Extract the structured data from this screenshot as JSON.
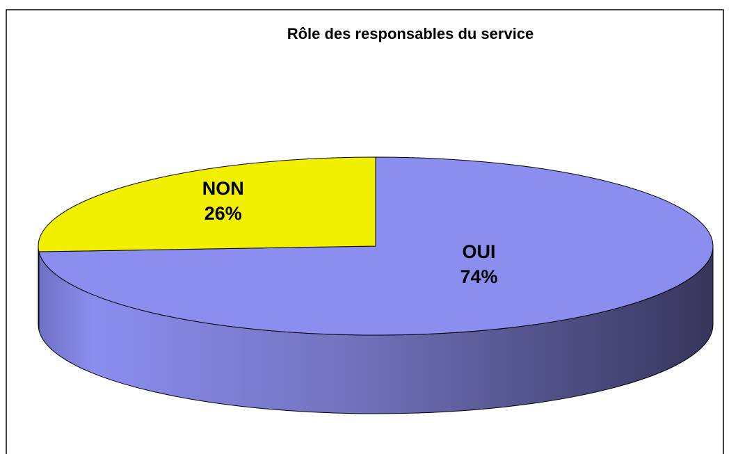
{
  "chart_data": {
    "type": "pie",
    "title": "Rôle des responsables du service",
    "categories": [
      "OUI",
      "NON"
    ],
    "values": [
      74,
      26
    ],
    "value_labels": [
      "74%",
      "26%"
    ],
    "colors": [
      "#8b8def",
      "#f0f000"
    ]
  }
}
